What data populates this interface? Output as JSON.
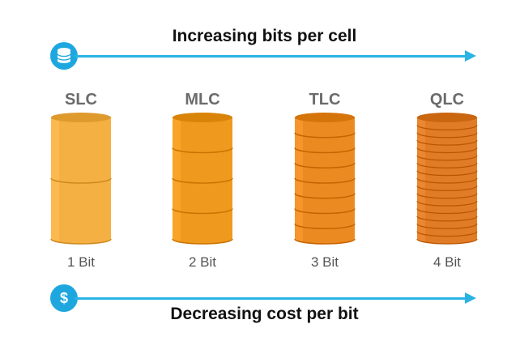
{
  "top": {
    "title": "Increasing bits per cell",
    "icon": "database-icon",
    "arrow_color": "#2ab4e3"
  },
  "bottom": {
    "title": "Decreasing cost per bit",
    "icon": "dollar-icon",
    "icon_glyph": "$",
    "arrow_color": "#2ab4e3"
  },
  "cells": [
    {
      "type": "SLC",
      "bits_label": "1 Bit",
      "layers": 2,
      "color": "#f5b044"
    },
    {
      "type": "MLC",
      "bits_label": "2 Bit",
      "layers": 4,
      "color": "#ef9a1f"
    },
    {
      "type": "TLC",
      "bits_label": "3 Bit",
      "layers": 8,
      "color": "#ec8a22"
    },
    {
      "type": "QLC",
      "bits_label": "4 Bit",
      "layers": 16,
      "color": "#e07b26"
    }
  ]
}
